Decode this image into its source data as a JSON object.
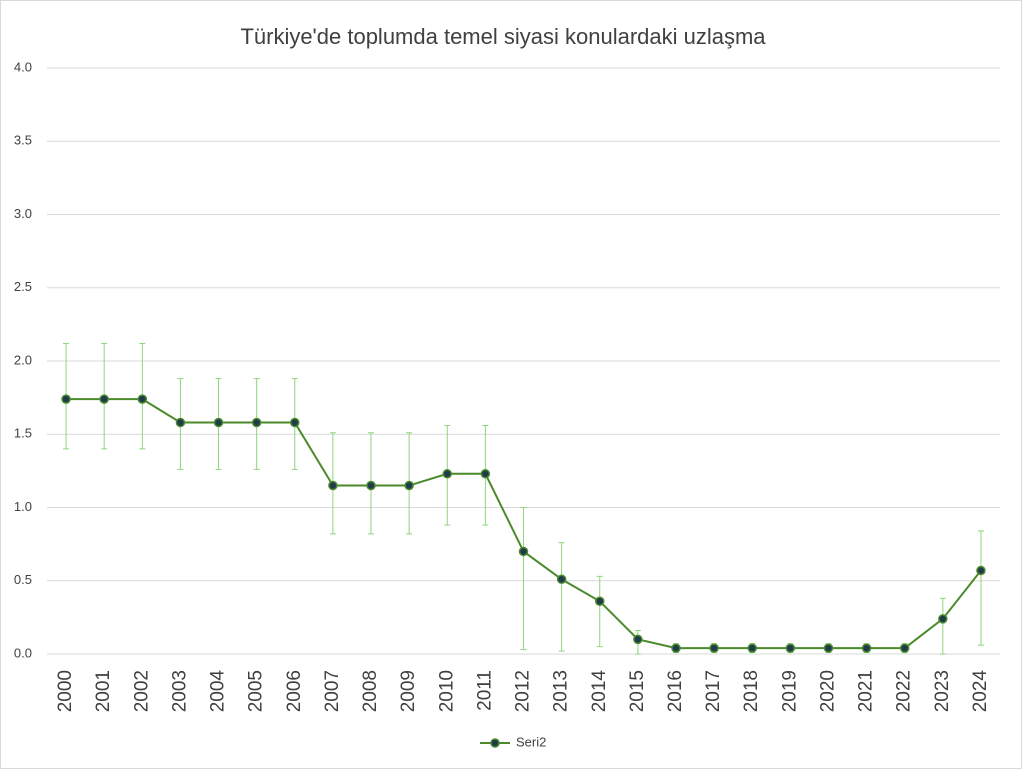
{
  "chart_data": {
    "type": "line",
    "title": "Türkiye'de toplumda temel siyasi konulardaki uzlaşma",
    "categories": [
      "2000",
      "2001",
      "2002",
      "2003",
      "2004",
      "2005",
      "2006",
      "2007",
      "2008",
      "2009",
      "2010",
      "2011",
      "2012",
      "2013",
      "2014",
      "2015",
      "2016",
      "2017",
      "2018",
      "2019",
      "2020",
      "2021",
      "2022",
      "2023",
      "2024"
    ],
    "series": [
      {
        "name": "Seri2",
        "color": "#4a8a2a",
        "marker_color": "#1f3b4d",
        "error_color": "#8fd47a",
        "values": [
          1.74,
          1.74,
          1.74,
          1.58,
          1.58,
          1.58,
          1.58,
          1.15,
          1.15,
          1.15,
          1.23,
          1.23,
          0.7,
          0.51,
          0.36,
          0.1,
          0.04,
          0.04,
          0.04,
          0.04,
          0.04,
          0.04,
          0.04,
          0.24,
          0.57
        ],
        "lower": [
          1.4,
          1.4,
          1.4,
          1.26,
          1.26,
          1.26,
          1.26,
          0.82,
          0.82,
          0.82,
          0.88,
          0.88,
          0.03,
          0.02,
          0.05,
          0.0,
          0.01,
          0.01,
          0.01,
          0.01,
          0.01,
          0.01,
          0.01,
          0.0,
          0.06
        ],
        "upper": [
          2.12,
          2.12,
          2.12,
          1.88,
          1.88,
          1.88,
          1.88,
          1.51,
          1.51,
          1.51,
          1.56,
          1.56,
          1.0,
          0.76,
          0.53,
          0.16,
          0.07,
          0.07,
          0.07,
          0.07,
          0.07,
          0.07,
          0.07,
          0.38,
          0.84
        ]
      }
    ],
    "ylim": [
      0,
      4
    ],
    "yticks": [
      {
        "value": 0,
        "label": "0.0"
      },
      0.5,
      {
        "value": 1,
        "label": "1.0"
      },
      1.5,
      {
        "value": 2,
        "label": "2.0"
      },
      2.5,
      {
        "value": 3,
        "label": "3.0"
      },
      3.5,
      {
        "value": 4,
        "label": "4.0"
      }
    ],
    "grid": true,
    "legend": "bottom"
  }
}
